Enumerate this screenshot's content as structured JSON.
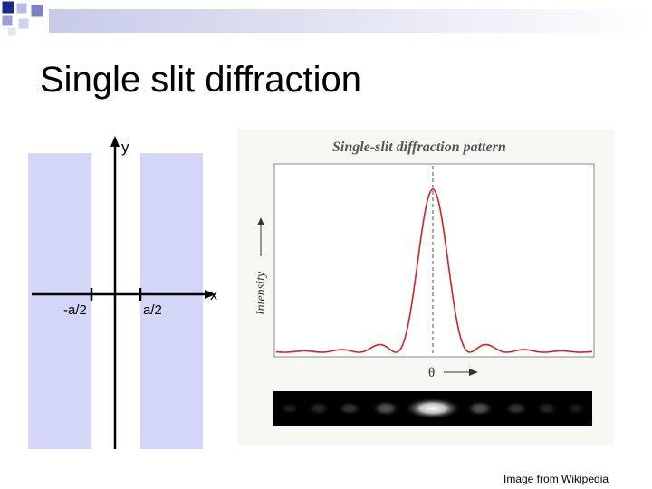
{
  "slide": {
    "title": "Single slit diffraction",
    "credit": "Image from Wikipedia"
  },
  "diagram": {
    "y_axis_label": "y",
    "x_axis_label": "x",
    "left_edge_label": "-a/2",
    "right_edge_label": "a/2"
  },
  "figure": {
    "title": "Single-slit diffraction pattern",
    "y_axis_label": "Intensity",
    "x_axis_label": "θ",
    "curve_color": "#d42020"
  },
  "colors": {
    "slit_wall": "#d4d6f7",
    "accent_square": "#1a2a8c"
  }
}
